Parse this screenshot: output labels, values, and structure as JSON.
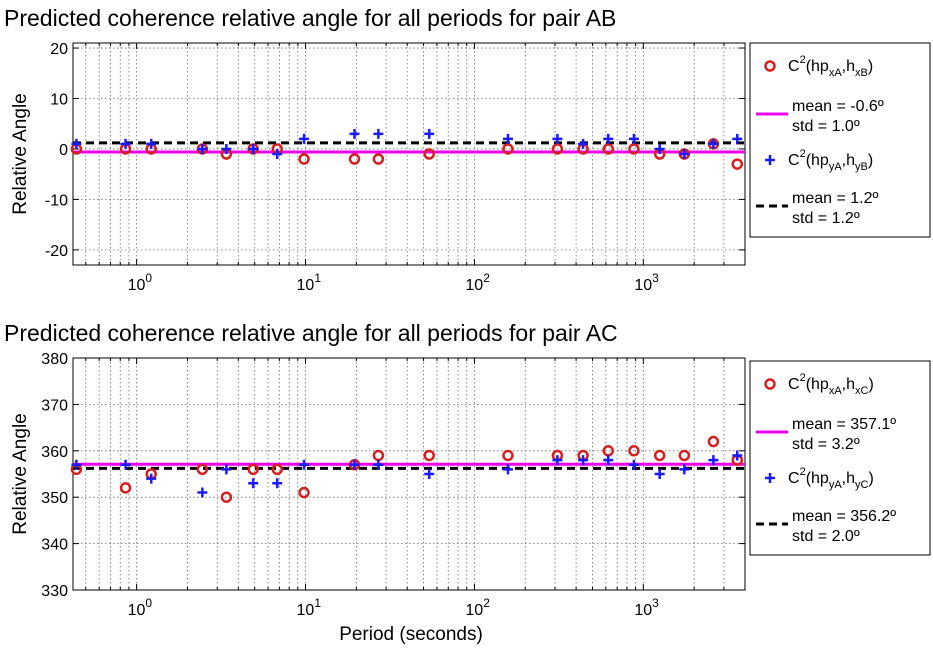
{
  "chart_data": [
    {
      "type": "scatter",
      "title": "Predicted coherence relative angle for all periods for pair AB",
      "ylabel": "Relative Angle",
      "xlabel": "",
      "xscale": "log",
      "xlim": [
        0.42,
        4000
      ],
      "ylim": [
        -23,
        21
      ],
      "yticks": [
        -20,
        -10,
        0,
        10,
        20
      ],
      "xticks": [
        1,
        10,
        100,
        1000
      ],
      "xtick_labels": [
        [
          "10",
          "0"
        ],
        [
          "10",
          "1"
        ],
        [
          "10",
          "2"
        ],
        [
          "10",
          "3"
        ]
      ],
      "grid": true,
      "legend_position": "right",
      "series": [
        {
          "name_main": "C",
          "name_sup": "2",
          "name_open": "(hp",
          "name_sub1": "xA",
          "name_mid": ",h",
          "name_sub2": "xB",
          "name_close": ")",
          "marker": "circle",
          "color": "#d62020",
          "x": [
            0.44,
            0.86,
            1.22,
            2.45,
            3.4,
            4.9,
            6.8,
            9.8,
            19.5,
            27,
            54,
            158,
            310,
            440,
            620,
            880,
            1250,
            1750,
            2600,
            3600
          ],
          "y": [
            0,
            0,
            0,
            0,
            -1,
            0,
            0,
            -2,
            -2,
            -2,
            -1,
            0,
            0,
            0,
            0,
            0,
            -1,
            -1,
            1,
            -3
          ]
        },
        {
          "name_main": "C",
          "name_sup": "2",
          "name_open": "(hp",
          "name_sub1": "yA",
          "name_mid": ",h",
          "name_sub2": "yB",
          "name_close": ")",
          "marker": "plus",
          "color": "#1a1aff",
          "x": [
            0.44,
            0.86,
            1.22,
            2.45,
            3.4,
            4.9,
            6.8,
            9.8,
            19.5,
            27,
            54,
            158,
            310,
            440,
            620,
            880,
            1250,
            1750,
            2600,
            3600
          ],
          "y": [
            1,
            1,
            1,
            0,
            0,
            0,
            -1,
            2,
            3,
            3,
            3,
            2,
            2,
            1,
            2,
            2,
            0,
            -1,
            1,
            2
          ]
        }
      ],
      "mean_lines": [
        {
          "y": -0.6,
          "color": "#ee00ee",
          "style": "solid",
          "label_line1": "mean = -0.6º",
          "label_line2": "std = 1.0º"
        },
        {
          "y": 1.2,
          "color": "#000000",
          "style": "dashed",
          "label_line1": "mean = 1.2º",
          "label_line2": "std = 1.2º"
        }
      ]
    },
    {
      "type": "scatter",
      "title": "Predicted coherence relative angle for all periods for pair AC",
      "ylabel": "Relative Angle",
      "xlabel": "Period (seconds)",
      "xscale": "log",
      "xlim": [
        0.42,
        4000
      ],
      "ylim": [
        330,
        380
      ],
      "yticks": [
        330,
        340,
        350,
        360,
        370,
        380
      ],
      "xticks": [
        1,
        10,
        100,
        1000
      ],
      "xtick_labels": [
        [
          "10",
          "0"
        ],
        [
          "10",
          "1"
        ],
        [
          "10",
          "2"
        ],
        [
          "10",
          "3"
        ]
      ],
      "grid": true,
      "legend_position": "right",
      "series": [
        {
          "name_main": "C",
          "name_sup": "2",
          "name_open": "(hp",
          "name_sub1": "xA",
          "name_mid": ",h",
          "name_sub2": "xC",
          "name_close": ")",
          "marker": "circle",
          "color": "#d62020",
          "x": [
            0.44,
            0.86,
            1.22,
            2.45,
            3.4,
            4.9,
            6.8,
            9.8,
            19.5,
            27,
            54,
            158,
            310,
            440,
            620,
            880,
            1250,
            1750,
            2600,
            3600
          ],
          "y": [
            356,
            352,
            355,
            356,
            350,
            356,
            356,
            351,
            357,
            359,
            359,
            359,
            359,
            359,
            360,
            360,
            359,
            359,
            362,
            358
          ]
        },
        {
          "name_main": "C",
          "name_sup": "2",
          "name_open": "(hp",
          "name_sub1": "yA",
          "name_mid": ",h",
          "name_sub2": "yC",
          "name_close": ")",
          "marker": "plus",
          "color": "#1a1aff",
          "x": [
            0.44,
            0.86,
            1.22,
            2.45,
            3.4,
            4.9,
            6.8,
            9.8,
            19.5,
            27,
            54,
            158,
            310,
            440,
            620,
            880,
            1250,
            1750,
            2600,
            3600
          ],
          "y": [
            357,
            357,
            354,
            351,
            356,
            353,
            353,
            357,
            357,
            357,
            355,
            356,
            358,
            358,
            358,
            357,
            355,
            356,
            358,
            359
          ]
        }
      ],
      "mean_lines": [
        {
          "y": 357.1,
          "color": "#ee00ee",
          "style": "solid",
          "label_line1": "mean = 357.1º",
          "label_line2": "std = 3.2º"
        },
        {
          "y": 356.2,
          "color": "#000000",
          "style": "dashed",
          "label_line1": "mean = 356.2º",
          "label_line2": "std = 2.0º"
        }
      ]
    }
  ]
}
